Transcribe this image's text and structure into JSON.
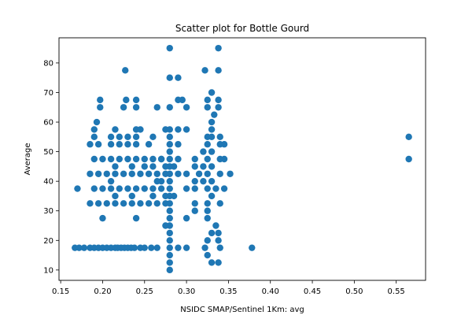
{
  "chart_data": {
    "type": "scatter",
    "title": "Scatter plot for Bottle Gourd",
    "xlabel": "NSIDC SMAP/Sentinel 1Km: avg",
    "ylabel": "Average",
    "xlim": [
      0.148,
      0.585
    ],
    "ylim": [
      6.5,
      88.5
    ],
    "xticks": [
      0.15,
      0.2,
      0.25,
      0.3,
      0.35,
      0.4,
      0.45,
      0.5,
      0.55
    ],
    "xtick_labels": [
      "0.15",
      "0.20",
      "0.25",
      "0.30",
      "0.35",
      "0.40",
      "0.45",
      "0.50",
      "0.55"
    ],
    "yticks": [
      10,
      20,
      30,
      40,
      50,
      60,
      70,
      80
    ],
    "ytick_labels": [
      "10",
      "20",
      "30",
      "40",
      "50",
      "60",
      "70",
      "80"
    ],
    "grid": false,
    "marker_color": "#1f77b4",
    "points": [
      [
        0.167,
        17.5
      ],
      [
        0.172,
        17.5
      ],
      [
        0.178,
        17.5
      ],
      [
        0.185,
        17.5
      ],
      [
        0.19,
        17.5
      ],
      [
        0.195,
        17.5
      ],
      [
        0.2,
        17.5
      ],
      [
        0.205,
        17.5
      ],
      [
        0.21,
        17.5
      ],
      [
        0.215,
        17.5
      ],
      [
        0.218,
        17.5
      ],
      [
        0.222,
        17.5
      ],
      [
        0.226,
        17.5
      ],
      [
        0.23,
        17.5
      ],
      [
        0.234,
        17.5
      ],
      [
        0.238,
        17.5
      ],
      [
        0.245,
        17.5
      ],
      [
        0.25,
        17.5
      ],
      [
        0.258,
        17.5
      ],
      [
        0.265,
        17.5
      ],
      [
        0.28,
        17.5
      ],
      [
        0.29,
        17.5
      ],
      [
        0.3,
        17.5
      ],
      [
        0.322,
        17.5
      ],
      [
        0.378,
        17.5
      ],
      [
        0.17,
        37.5
      ],
      [
        0.19,
        37.5
      ],
      [
        0.2,
        37.5
      ],
      [
        0.21,
        37.5
      ],
      [
        0.22,
        37.5
      ],
      [
        0.23,
        37.5
      ],
      [
        0.24,
        37.5
      ],
      [
        0.25,
        37.5
      ],
      [
        0.26,
        37.5
      ],
      [
        0.27,
        37.5
      ],
      [
        0.28,
        37.5
      ],
      [
        0.3,
        37.5
      ],
      [
        0.31,
        37.5
      ],
      [
        0.325,
        37.5
      ],
      [
        0.335,
        37.5
      ],
      [
        0.185,
        32.5
      ],
      [
        0.195,
        32.5
      ],
      [
        0.205,
        32.5
      ],
      [
        0.215,
        32.5
      ],
      [
        0.225,
        32.5
      ],
      [
        0.235,
        32.5
      ],
      [
        0.245,
        32.5
      ],
      [
        0.255,
        32.5
      ],
      [
        0.265,
        32.5
      ],
      [
        0.275,
        32.5
      ],
      [
        0.28,
        32.5
      ],
      [
        0.31,
        32.5
      ],
      [
        0.325,
        32.5
      ],
      [
        0.34,
        32.5
      ],
      [
        0.185,
        42.5
      ],
      [
        0.195,
        42.5
      ],
      [
        0.205,
        42.5
      ],
      [
        0.215,
        42.5
      ],
      [
        0.225,
        42.5
      ],
      [
        0.235,
        42.5
      ],
      [
        0.245,
        42.5
      ],
      [
        0.255,
        42.5
      ],
      [
        0.265,
        42.5
      ],
      [
        0.275,
        42.5
      ],
      [
        0.28,
        42.5
      ],
      [
        0.29,
        42.5
      ],
      [
        0.3,
        42.5
      ],
      [
        0.315,
        42.5
      ],
      [
        0.325,
        42.5
      ],
      [
        0.34,
        42.5
      ],
      [
        0.352,
        42.5
      ],
      [
        0.19,
        47.5
      ],
      [
        0.2,
        47.5
      ],
      [
        0.21,
        47.5
      ],
      [
        0.22,
        47.5
      ],
      [
        0.23,
        47.5
      ],
      [
        0.24,
        47.5
      ],
      [
        0.25,
        47.5
      ],
      [
        0.26,
        47.5
      ],
      [
        0.27,
        47.5
      ],
      [
        0.28,
        47.5
      ],
      [
        0.29,
        47.5
      ],
      [
        0.31,
        47.5
      ],
      [
        0.325,
        47.5
      ],
      [
        0.34,
        47.5
      ],
      [
        0.565,
        47.5
      ],
      [
        0.185,
        52.5
      ],
      [
        0.195,
        52.5
      ],
      [
        0.21,
        52.5
      ],
      [
        0.22,
        52.5
      ],
      [
        0.23,
        52.5
      ],
      [
        0.24,
        52.5
      ],
      [
        0.255,
        52.5
      ],
      [
        0.28,
        52.5
      ],
      [
        0.29,
        52.5
      ],
      [
        0.325,
        52.5
      ],
      [
        0.34,
        52.5
      ],
      [
        0.19,
        55
      ],
      [
        0.21,
        55
      ],
      [
        0.22,
        55
      ],
      [
        0.23,
        55
      ],
      [
        0.24,
        55
      ],
      [
        0.26,
        55
      ],
      [
        0.28,
        55
      ],
      [
        0.325,
        55
      ],
      [
        0.34,
        55
      ],
      [
        0.565,
        55
      ],
      [
        0.19,
        57.5
      ],
      [
        0.215,
        57.5
      ],
      [
        0.24,
        57.5
      ],
      [
        0.245,
        57.5
      ],
      [
        0.275,
        57.5
      ],
      [
        0.29,
        57.5
      ],
      [
        0.3,
        57.5
      ],
      [
        0.33,
        57.5
      ],
      [
        0.193,
        60
      ],
      [
        0.197,
        65
      ],
      [
        0.197,
        67.5
      ],
      [
        0.225,
        65
      ],
      [
        0.228,
        67.5
      ],
      [
        0.24,
        65
      ],
      [
        0.24,
        67.5
      ],
      [
        0.265,
        65
      ],
      [
        0.28,
        65
      ],
      [
        0.29,
        67.5
      ],
      [
        0.295,
        67.5
      ],
      [
        0.3,
        65
      ],
      [
        0.325,
        65
      ],
      [
        0.325,
        67.5
      ],
      [
        0.338,
        65
      ],
      [
        0.338,
        67.5
      ],
      [
        0.333,
        62.5
      ],
      [
        0.33,
        60
      ],
      [
        0.227,
        77.5
      ],
      [
        0.28,
        75
      ],
      [
        0.28,
        85
      ],
      [
        0.29,
        75
      ],
      [
        0.322,
        77.5
      ],
      [
        0.338,
        77.5
      ],
      [
        0.338,
        85
      ],
      [
        0.33,
        70
      ],
      [
        0.2,
        27.5
      ],
      [
        0.215,
        35
      ],
      [
        0.24,
        27.5
      ],
      [
        0.235,
        35
      ],
      [
        0.26,
        35
      ],
      [
        0.3,
        27.5
      ],
      [
        0.31,
        30
      ],
      [
        0.325,
        27.5
      ],
      [
        0.325,
        30
      ],
      [
        0.33,
        22.5
      ],
      [
        0.335,
        25
      ],
      [
        0.338,
        22.5
      ],
      [
        0.338,
        20
      ],
      [
        0.325,
        20
      ],
      [
        0.325,
        15
      ],
      [
        0.33,
        12.5
      ],
      [
        0.338,
        12.5
      ],
      [
        0.34,
        17.5
      ],
      [
        0.28,
        10
      ],
      [
        0.28,
        12.5
      ],
      [
        0.28,
        15
      ],
      [
        0.28,
        20
      ],
      [
        0.28,
        22.5
      ],
      [
        0.28,
        25
      ],
      [
        0.28,
        27.5
      ],
      [
        0.28,
        30
      ],
      [
        0.28,
        35
      ],
      [
        0.28,
        40
      ],
      [
        0.28,
        45
      ],
      [
        0.28,
        50
      ],
      [
        0.28,
        57.5
      ],
      [
        0.275,
        25
      ],
      [
        0.275,
        35
      ],
      [
        0.275,
        45
      ],
      [
        0.285,
        45
      ],
      [
        0.285,
        35
      ],
      [
        0.27,
        40
      ],
      [
        0.27,
        47.5
      ],
      [
        0.32,
        40
      ],
      [
        0.32,
        45
      ],
      [
        0.32,
        50
      ],
      [
        0.33,
        35
      ],
      [
        0.33,
        40
      ],
      [
        0.33,
        45
      ],
      [
        0.33,
        50
      ],
      [
        0.33,
        55
      ],
      [
        0.345,
        37.5
      ],
      [
        0.345,
        47.5
      ],
      [
        0.345,
        52.5
      ],
      [
        0.21,
        40
      ],
      [
        0.215,
        45
      ],
      [
        0.235,
        45
      ],
      [
        0.25,
        45
      ],
      [
        0.26,
        45
      ],
      [
        0.265,
        40
      ],
      [
        0.31,
        40
      ],
      [
        0.31,
        45
      ]
    ]
  }
}
